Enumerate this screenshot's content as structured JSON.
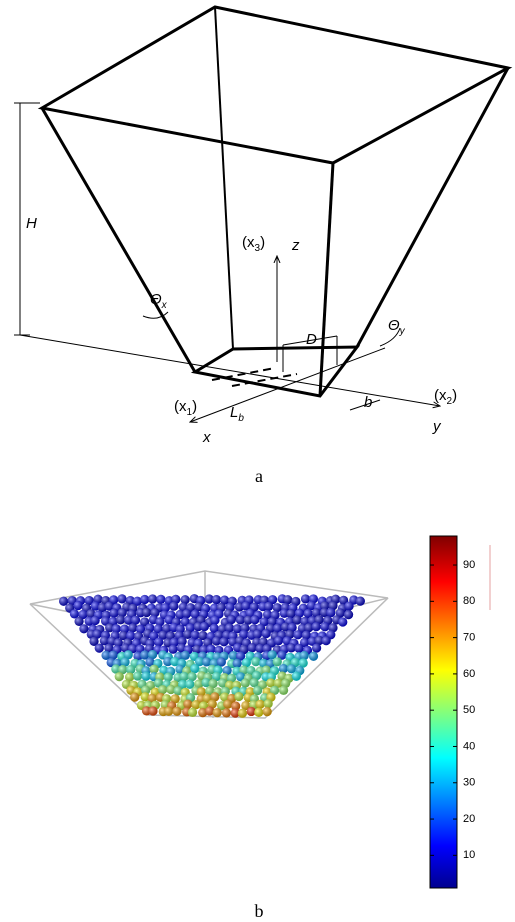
{
  "panel_a": {
    "caption": "a",
    "labels": {
      "height": "H",
      "theta_x": {
        "main": "Θ",
        "sub": "x"
      },
      "theta_y": {
        "main": "Θ",
        "sub": "y"
      },
      "x3": {
        "main": "(x",
        "sub": "3",
        "end": ")"
      },
      "z": "z",
      "d": "D",
      "x1": {
        "main": "(x",
        "sub": "1",
        "end": ")"
      },
      "lb": {
        "main": "L",
        "sub": "b"
      },
      "x": "x",
      "b": "b",
      "x2": {
        "main": "(x",
        "sub": "2",
        "end": ")"
      },
      "y": "y"
    }
  },
  "panel_b": {
    "caption": "b",
    "colorbar": {
      "lim": [
        1,
        98
      ],
      "ticks": [
        10,
        20,
        30,
        40,
        50,
        60,
        70,
        80,
        90
      ]
    }
  }
}
